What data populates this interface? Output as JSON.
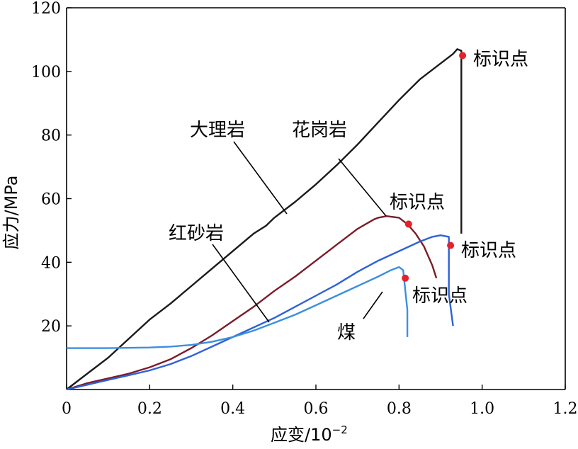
{
  "chart_data": {
    "type": "line",
    "xlabel": "应变/10",
    "xlabel_exponent": "−2",
    "ylabel": "应力/MPa",
    "xlim": [
      0,
      1.2
    ],
    "ylim": [
      0,
      120
    ],
    "xticks": [
      0,
      0.2,
      0.4,
      0.6,
      0.8,
      1.0,
      1.2
    ],
    "xtick_labels": [
      "0",
      "0.2",
      "0.4",
      "0.6",
      "0.8",
      "1.0",
      "1.2"
    ],
    "yticks": [
      20,
      40,
      60,
      80,
      100,
      120
    ],
    "ytick_labels": [
      "20",
      "40",
      "60",
      "80",
      "100",
      "120"
    ],
    "grid": false,
    "series": [
      {
        "name": "大理岩",
        "color": "#1a1a1a",
        "x": [
          0,
          0.05,
          0.1,
          0.15,
          0.2,
          0.25,
          0.3,
          0.35,
          0.4,
          0.45,
          0.48,
          0.5,
          0.55,
          0.6,
          0.65,
          0.7,
          0.75,
          0.8,
          0.85,
          0.9,
          0.93,
          0.94,
          0.95,
          0.95
        ],
        "y": [
          0,
          5,
          10,
          16,
          22,
          27,
          32.5,
          38,
          43.5,
          49,
          51.5,
          54,
          59,
          64.5,
          70.5,
          77,
          84,
          91,
          97.5,
          102.5,
          105.5,
          107,
          106.5,
          49
        ]
      },
      {
        "name": "花岗岩",
        "color": "#7a1c2a",
        "x": [
          0,
          0.05,
          0.1,
          0.15,
          0.2,
          0.25,
          0.3,
          0.35,
          0.4,
          0.45,
          0.5,
          0.55,
          0.6,
          0.65,
          0.7,
          0.74,
          0.75,
          0.77,
          0.8,
          0.82,
          0.84,
          0.86,
          0.88,
          0.89
        ],
        "y": [
          0,
          2,
          3.5,
          5,
          7,
          9.5,
          13,
          17,
          21.5,
          26,
          31,
          35.5,
          40.5,
          45.5,
          50.5,
          53.5,
          54,
          54.5,
          54,
          52,
          49,
          45,
          39,
          35
        ]
      },
      {
        "name": "红砂岩",
        "color": "#2e62d8",
        "x": [
          0,
          0.05,
          0.1,
          0.15,
          0.2,
          0.25,
          0.3,
          0.35,
          0.4,
          0.45,
          0.5,
          0.55,
          0.6,
          0.65,
          0.7,
          0.75,
          0.8,
          0.85,
          0.88,
          0.9,
          0.92,
          0.92,
          0.93
        ],
        "y": [
          0,
          1.5,
          3,
          4.5,
          6,
          8,
          10.5,
          13.5,
          16.5,
          19.5,
          22.5,
          26,
          29.5,
          33,
          37,
          40.5,
          43.5,
          46.5,
          48,
          48.5,
          48,
          30,
          20
        ]
      },
      {
        "name": "煤",
        "color": "#3a8fe0",
        "x": [
          0,
          0.05,
          0.1,
          0.2,
          0.25,
          0.3,
          0.35,
          0.4,
          0.45,
          0.5,
          0.55,
          0.6,
          0.65,
          0.7,
          0.75,
          0.78,
          0.8,
          0.81,
          0.82,
          0.82
        ],
        "y": [
          13,
          13,
          13,
          13.2,
          13.5,
          14,
          15,
          16.5,
          18.5,
          21,
          23.5,
          26.5,
          29.5,
          32.5,
          35.5,
          37.5,
          38.5,
          37.5,
          25,
          16.5
        ]
      }
    ],
    "markers": [
      {
        "x": 0.953,
        "y": 105,
        "label": "标识点",
        "color": "#e8202a"
      },
      {
        "x": 0.823,
        "y": 52,
        "label": "标识点",
        "color": "#e8202a"
      },
      {
        "x": 0.924,
        "y": 45.3,
        "label": "标识点",
        "color": "#e8202a"
      },
      {
        "x": 0.815,
        "y": 35,
        "label": "标识点",
        "color": "#e8202a"
      }
    ]
  }
}
